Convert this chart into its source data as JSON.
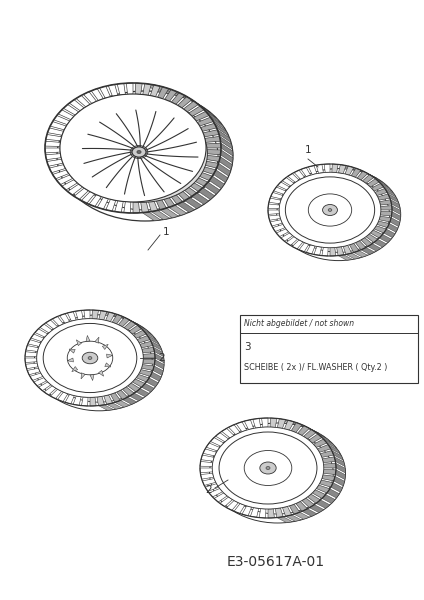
{
  "bg_color": "#ffffff",
  "line_color": "#333333",
  "fig_width": 4.24,
  "fig_height": 6.0,
  "dpi": 100,
  "table_header": "Nicht abgebildet / not shown",
  "table_row1": "3",
  "table_row2": "SCHEIBE ( 2x )/ FL.WASHER ( Qty.2 )",
  "code_text": "E3-05617A-01"
}
